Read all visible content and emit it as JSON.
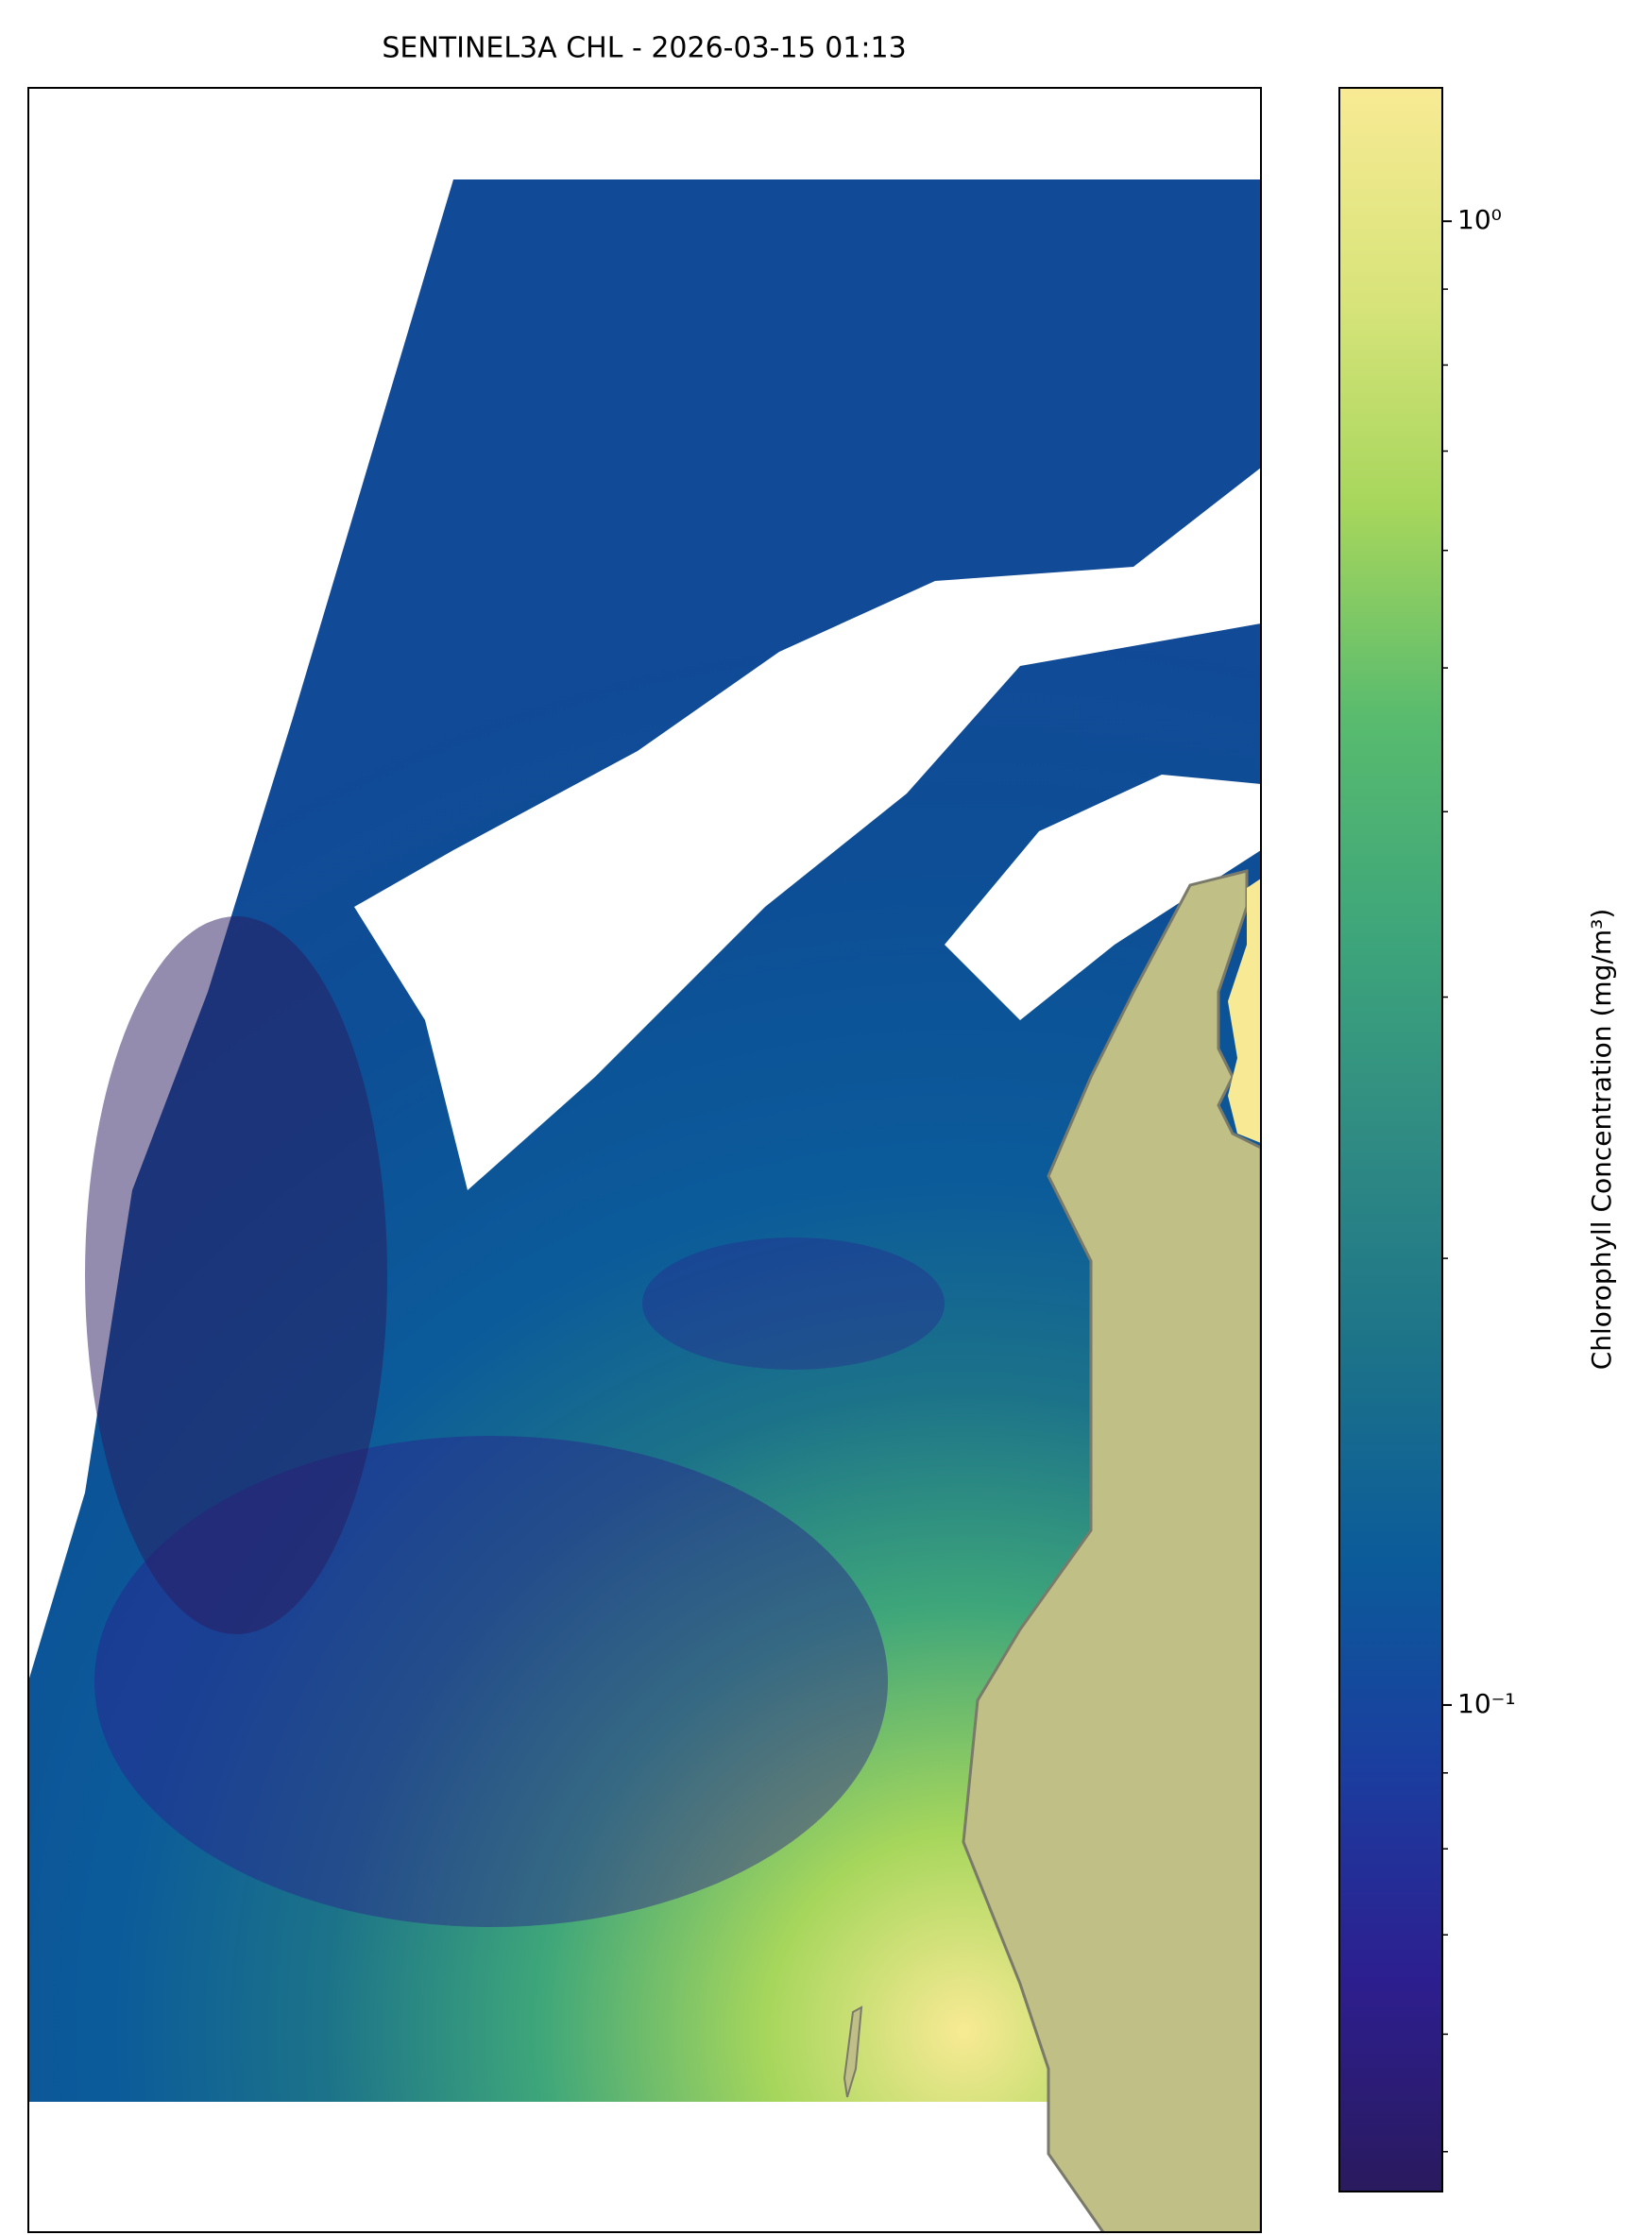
{
  "chart_data": {
    "type": "colormap-image",
    "title": "SENTINEL3A CHL - 2026-03-15 01:13",
    "colorbar_label": "Chlorophyll Concentration (mg/m³)",
    "log_scale": true,
    "clim": [
      0.047,
      1.23
    ],
    "cticks": [
      {
        "value": 1,
        "label": "10⁰"
      },
      {
        "value": 0.1,
        "label": "10⁻¹"
      }
    ],
    "minor_cticks": [
      0.05,
      0.06,
      0.07,
      0.08,
      0.09,
      0.2,
      0.3,
      0.4,
      0.5,
      0.6,
      0.7,
      0.8,
      0.9
    ],
    "colormap": [
      "#2a1a5e",
      "#2d1e8f",
      "#1b3d9f",
      "#0b5b9a",
      "#1c7389",
      "#2f8b83",
      "#3ea67a",
      "#58bb6e",
      "#a6d65c",
      "#d8e47a",
      "#f8ea94"
    ],
    "land_color": "#bfbf86"
  }
}
